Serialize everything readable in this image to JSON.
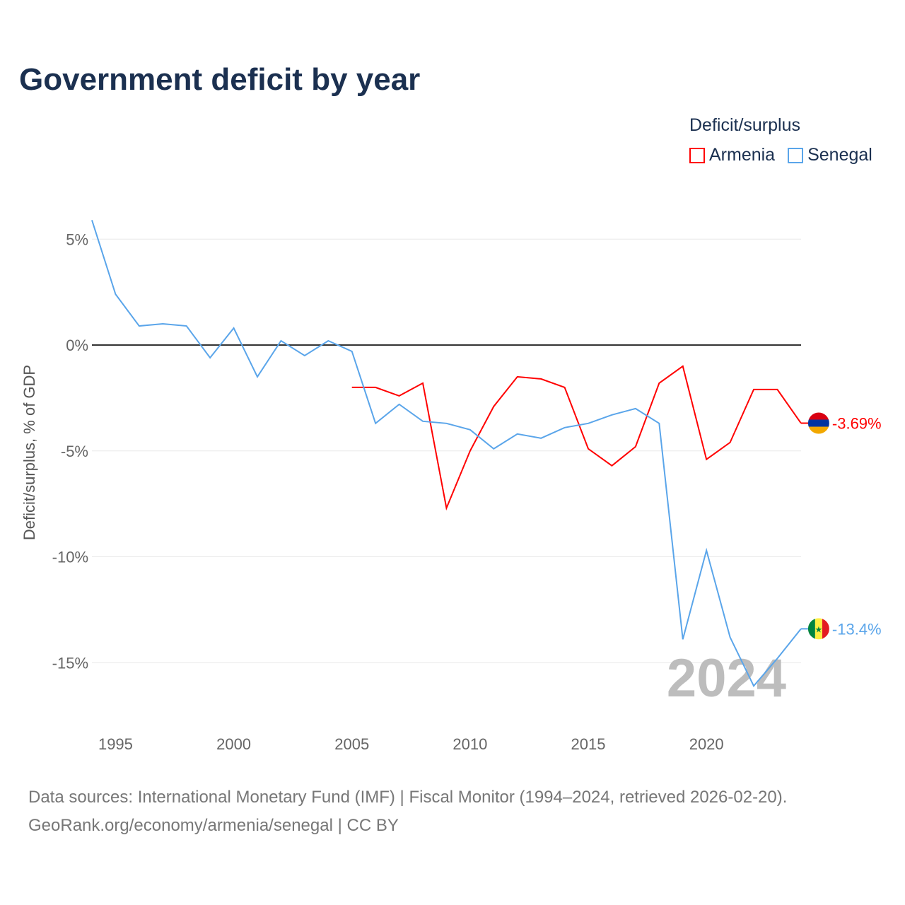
{
  "title": "Government deficit by year",
  "source_line1": "Data sources: International Monetary Fund (IMF) | Fiscal Monitor (1994–2024, retrieved 2026-02-20).",
  "source_line2": "GeoRank.org/economy/armenia/senegal | CC BY",
  "chart_data": {
    "type": "line",
    "title": "Government deficit by year",
    "xlabel": "",
    "ylabel": "Deficit/surplus, % of GDP",
    "legend_title": "Deficit/surplus",
    "legend_position": "top-right",
    "year_watermark": "2024",
    "xlim": [
      1994,
      2024
    ],
    "ylim": [
      -17,
      7
    ],
    "x_ticks": [
      1995,
      2000,
      2005,
      2010,
      2015,
      2020
    ],
    "y_ticks": [
      5,
      0,
      -5,
      -10,
      -15
    ],
    "y_tick_labels": [
      "5%",
      "0%",
      "-5%",
      "-10%",
      "-15%"
    ],
    "series": [
      {
        "name": "Armenia",
        "color": "#ff0000",
        "end_label": "-3.69%",
        "x": [
          2005,
          2006,
          2007,
          2008,
          2009,
          2010,
          2011,
          2012,
          2013,
          2014,
          2015,
          2016,
          2017,
          2018,
          2019,
          2020,
          2021,
          2022,
          2023,
          2024
        ],
        "values": [
          -2.0,
          -2.0,
          -2.4,
          -1.8,
          -7.7,
          -5.0,
          -2.9,
          -1.5,
          -1.6,
          -2.0,
          -4.9,
          -5.7,
          -4.8,
          -1.8,
          -1.0,
          -5.4,
          -4.6,
          -2.1,
          -2.1,
          -3.69
        ]
      },
      {
        "name": "Senegal",
        "color": "#5aa5ea",
        "end_label": "-13.4%",
        "x": [
          1994,
          1995,
          1996,
          1997,
          1998,
          1999,
          2000,
          2001,
          2002,
          2003,
          2004,
          2005,
          2006,
          2007,
          2008,
          2009,
          2010,
          2011,
          2012,
          2013,
          2014,
          2015,
          2016,
          2017,
          2018,
          2019,
          2020,
          2021,
          2022,
          2023,
          2024
        ],
        "values": [
          5.9,
          2.4,
          0.9,
          1.0,
          0.9,
          -0.6,
          0.8,
          -1.5,
          0.2,
          -0.5,
          0.2,
          -0.3,
          -3.7,
          -2.8,
          -3.6,
          -3.7,
          -4.0,
          -4.9,
          -4.2,
          -4.4,
          -3.9,
          -3.7,
          -3.3,
          -3.0,
          -3.7,
          -13.9,
          -9.7,
          -13.8,
          -16.1,
          -14.8,
          -13.4
        ]
      }
    ]
  }
}
